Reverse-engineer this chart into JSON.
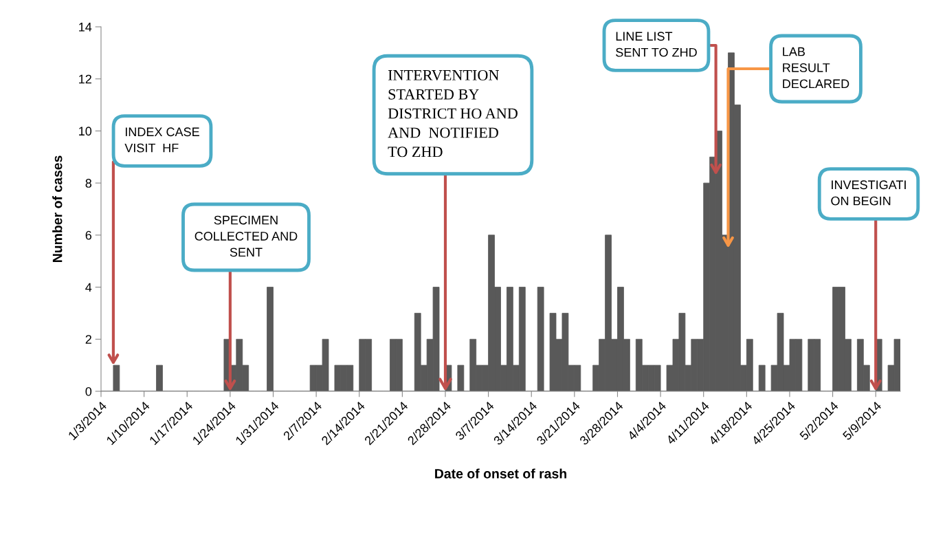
{
  "chart_data": {
    "type": "bar",
    "xlabel": "Date of onset of rash",
    "ylabel": "Number of cases",
    "color": "#595959",
    "x": [
      "2014-01-03",
      "2014-01-04",
      "2014-01-05",
      "2014-01-06",
      "2014-01-07",
      "2014-01-08",
      "2014-01-09",
      "2014-01-10",
      "2014-01-11",
      "2014-01-12",
      "2014-01-13",
      "2014-01-14",
      "2014-01-15",
      "2014-01-16",
      "2014-01-17",
      "2014-01-18",
      "2014-01-19",
      "2014-01-20",
      "2014-01-21",
      "2014-01-22",
      "2014-01-23",
      "2014-01-24",
      "2014-01-25",
      "2014-01-26",
      "2014-01-27",
      "2014-01-28",
      "2014-01-29",
      "2014-01-30",
      "2014-01-31",
      "2014-02-01",
      "2014-02-02",
      "2014-02-03",
      "2014-02-04",
      "2014-02-05",
      "2014-02-06",
      "2014-02-07",
      "2014-02-08",
      "2014-02-09",
      "2014-02-10",
      "2014-02-11",
      "2014-02-12",
      "2014-02-13",
      "2014-02-14",
      "2014-02-15",
      "2014-02-16",
      "2014-02-17",
      "2014-02-18",
      "2014-02-19",
      "2014-02-20",
      "2014-02-21",
      "2014-02-22",
      "2014-02-23",
      "2014-02-24",
      "2014-02-25",
      "2014-02-26",
      "2014-02-27",
      "2014-02-28",
      "2014-03-01",
      "2014-03-02",
      "2014-03-03",
      "2014-03-04",
      "2014-03-05",
      "2014-03-06",
      "2014-03-07",
      "2014-03-08",
      "2014-03-09",
      "2014-03-10",
      "2014-03-11",
      "2014-03-12",
      "2014-03-13",
      "2014-03-14",
      "2014-03-15",
      "2014-03-16",
      "2014-03-17",
      "2014-03-18",
      "2014-03-19",
      "2014-03-20",
      "2014-03-21",
      "2014-03-22",
      "2014-03-23",
      "2014-03-24",
      "2014-03-25",
      "2014-03-26",
      "2014-03-27",
      "2014-03-28",
      "2014-03-29",
      "2014-03-30",
      "2014-03-31",
      "2014-04-01",
      "2014-04-02",
      "2014-04-03",
      "2014-04-04",
      "2014-04-05",
      "2014-04-06",
      "2014-04-07",
      "2014-04-08",
      "2014-04-09",
      "2014-04-10",
      "2014-04-11",
      "2014-04-12",
      "2014-04-13",
      "2014-04-14",
      "2014-04-15",
      "2014-04-16",
      "2014-04-17",
      "2014-04-18",
      "2014-04-19",
      "2014-04-20",
      "2014-04-21",
      "2014-04-22",
      "2014-04-23",
      "2014-04-24",
      "2014-04-25",
      "2014-04-26",
      "2014-04-27",
      "2014-04-28",
      "2014-04-29",
      "2014-04-30",
      "2014-05-01",
      "2014-05-02",
      "2014-05-03",
      "2014-05-04",
      "2014-05-05",
      "2014-05-06",
      "2014-05-07",
      "2014-05-08",
      "2014-05-09",
      "2014-05-10",
      "2014-05-11",
      "2014-05-12"
    ],
    "values": [
      0,
      0,
      1,
      0,
      0,
      0,
      0,
      0,
      0,
      1,
      0,
      0,
      0,
      0,
      0,
      0,
      0,
      0,
      0,
      0,
      2,
      1,
      2,
      1,
      0,
      0,
      0,
      4,
      0,
      0,
      0,
      0,
      0,
      0,
      1,
      1,
      2,
      0,
      1,
      1,
      1,
      0,
      2,
      2,
      0,
      0,
      0,
      2,
      2,
      0,
      0,
      3,
      1,
      2,
      4,
      0,
      1,
      0,
      1,
      0,
      2,
      1,
      1,
      6,
      4,
      1,
      4,
      1,
      4,
      0,
      0,
      4,
      0,
      3,
      2,
      3,
      1,
      1,
      0,
      0,
      1,
      2,
      6,
      2,
      4,
      2,
      0,
      2,
      1,
      1,
      1,
      0,
      1,
      2,
      3,
      1,
      2,
      2,
      8,
      9,
      10,
      6,
      13,
      11,
      1,
      2,
      0,
      1,
      0,
      1,
      3,
      1,
      2,
      2,
      0,
      2,
      2,
      0,
      0,
      4,
      4,
      2,
      0,
      2,
      1,
      0,
      2,
      0,
      1,
      2
    ],
    "xlim": [
      "2014-01-03",
      "2014-05-13"
    ],
    "xticks": [
      {
        "value": "2014-01-03",
        "label": "1/3/2014"
      },
      {
        "value": "2014-01-10",
        "label": "1/10/2014"
      },
      {
        "value": "2014-01-17",
        "label": "1/17/2014"
      },
      {
        "value": "2014-01-24",
        "label": "1/24/2014"
      },
      {
        "value": "2014-01-31",
        "label": "1/31/2014"
      },
      {
        "value": "2014-02-07",
        "label": "2/7/2014"
      },
      {
        "value": "2014-02-14",
        "label": "2/14/2014"
      },
      {
        "value": "2014-02-21",
        "label": "2/21/2014"
      },
      {
        "value": "2014-02-28",
        "label": "2/28/2014"
      },
      {
        "value": "2014-03-07",
        "label": "3/7/2014"
      },
      {
        "value": "2014-03-14",
        "label": "3/14/2014"
      },
      {
        "value": "2014-03-21",
        "label": "3/21/2014"
      },
      {
        "value": "2014-03-28",
        "label": "3/28/2014"
      },
      {
        "value": "2014-04-04",
        "label": "4/4/2014"
      },
      {
        "value": "2014-04-11",
        "label": "4/11/2014"
      },
      {
        "value": "2014-04-18",
        "label": "4/18/2014"
      },
      {
        "value": "2014-04-25",
        "label": "4/25/2014"
      },
      {
        "value": "2014-05-02",
        "label": "5/2/2014"
      },
      {
        "value": "2014-05-09",
        "label": "5/9/2014"
      }
    ],
    "ylim": [
      0,
      14
    ],
    "yticks": [
      0,
      2,
      4,
      6,
      8,
      10,
      12,
      14
    ],
    "grid": false,
    "legend": false,
    "annotations": [
      {
        "text": "INDEX CASE\nVISIT  HF",
        "x": "2014-01-05",
        "y": 1
      },
      {
        "text": "SPECIMEN\nCOLLECTED AND\nSENT",
        "x": "2014-01-24",
        "y": 0
      },
      {
        "text": "INTERVENTION\nSTARTED BY\nDISTRICT HO AND\nAND  NOTIFIED\nTO ZHD",
        "x": "2014-02-28",
        "y": 0
      },
      {
        "text": "LINE LIST\nSENT TO ZHD",
        "x": "2014-04-13",
        "y": 8.3
      },
      {
        "text": "LAB\nRESULT\nDECLARED",
        "x": "2014-04-15",
        "y": 5.5
      },
      {
        "text": "INVESTIGATI\nON BEGIN",
        "x": "2014-05-09",
        "y": 0
      }
    ]
  }
}
